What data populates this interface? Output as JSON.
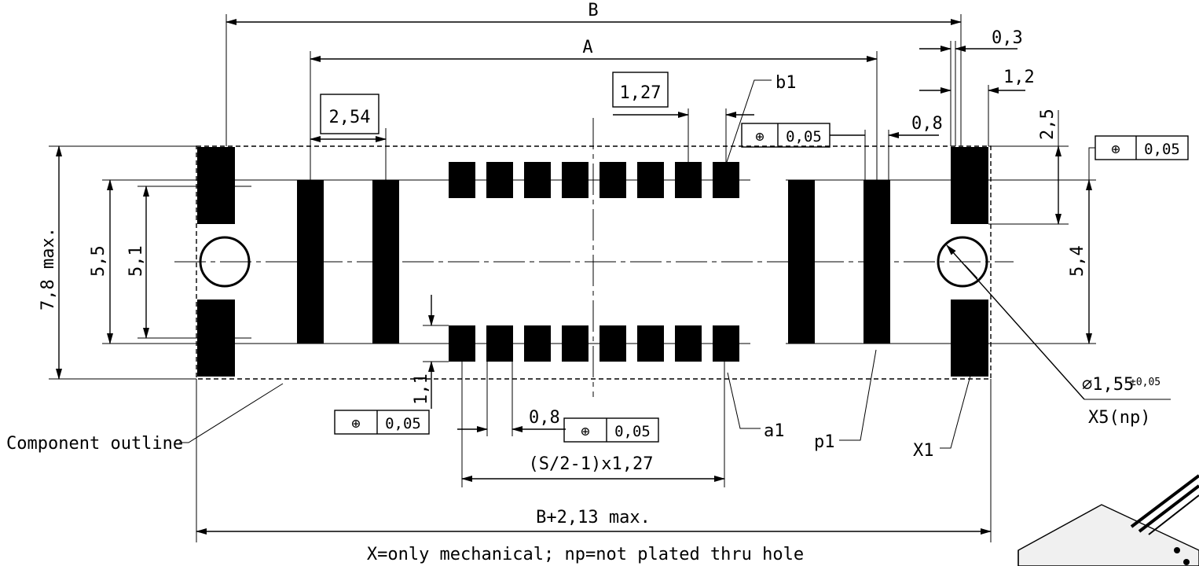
{
  "dims": {
    "B": "B",
    "A": "A",
    "d0_3": "0,3",
    "d1_2": "1,2",
    "d1_27": "1,27",
    "d2_54": "2,54",
    "d0_8_top": "0,8",
    "d2_5": "2,5",
    "d7_8": "7,8 max.",
    "d5_5": "5,5",
    "d5_1": "5,1",
    "d5_4": "5,4",
    "d1_1": "1,1",
    "d0_8_bottom": "0,8",
    "pitch_formula": "(S/2-1)x1,27",
    "overall": "B+2,13 max.",
    "hole_dia": "∅1,55",
    "hole_tol": "±0,05",
    "hole_ref": "X5(np)"
  },
  "tolerance_frames": [
    {
      "symbol": "⊕",
      "value": "0,05"
    },
    {
      "symbol": "⊕",
      "value": "0,05"
    },
    {
      "symbol": "⊕",
      "value": "0,05"
    },
    {
      "symbol": "⊕",
      "value": "0,05"
    }
  ],
  "callouts": {
    "b1": "b1",
    "a1": "a1",
    "p1": "p1",
    "X1": "X1",
    "component_outline": "Component outline"
  },
  "footnote": "X=only mechanical; np=not plated thru hole"
}
